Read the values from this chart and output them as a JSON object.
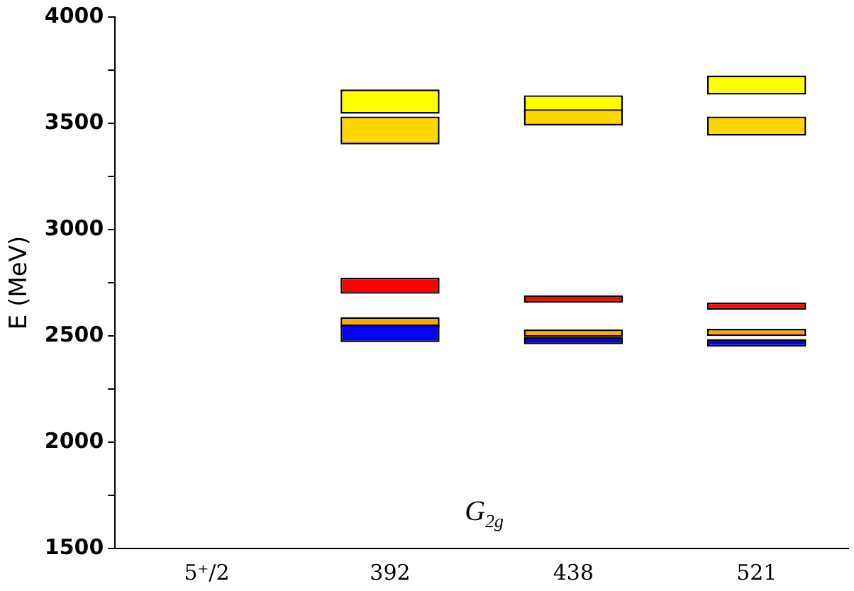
{
  "chart_data": {
    "type": "bar",
    "ylabel": "E (MeV)",
    "annotations": [
      "G$_{2g}$"
    ],
    "categories": [
      "5⁺/2",
      "392",
      "438",
      "521"
    ],
    "series": [
      {
        "color": "#0000ff",
        "base": [
          null,
          2471,
          2461,
          2450
        ],
        "values": [
          null,
          83,
          34,
          35
        ]
      },
      {
        "color": "#ffa500",
        "base": [
          null,
          2540,
          2495,
          2499
        ],
        "values": [
          null,
          48,
          35,
          34
        ]
      },
      {
        "color": "#ff0000",
        "base": [
          null,
          2698,
          2657,
          2623
        ],
        "values": [
          null,
          76,
          34,
          34
        ]
      },
      {
        "color": "#ffd700",
        "base": [
          null,
          3401,
          3490,
          3442
        ],
        "values": [
          null,
          131,
          76,
          90
        ]
      },
      {
        "color": "#ffff00",
        "base": [
          null,
          3545,
          3549,
          3635
        ],
        "values": [
          null,
          114,
          83,
          90
        ]
      }
    ],
    "ylim": [
      1500,
      4000
    ],
    "yticks": [
      1500,
      {
        "value": 1750,
        "label": null
      },
      2000,
      {
        "value": 2250,
        "label": null
      },
      2500,
      {
        "value": 2750,
        "label": null
      },
      3000,
      {
        "value": 3250,
        "label": null
      },
      3500,
      {
        "value": 3750,
        "label": null
      },
      4000
    ],
    "grid": false,
    "legend": false
  }
}
